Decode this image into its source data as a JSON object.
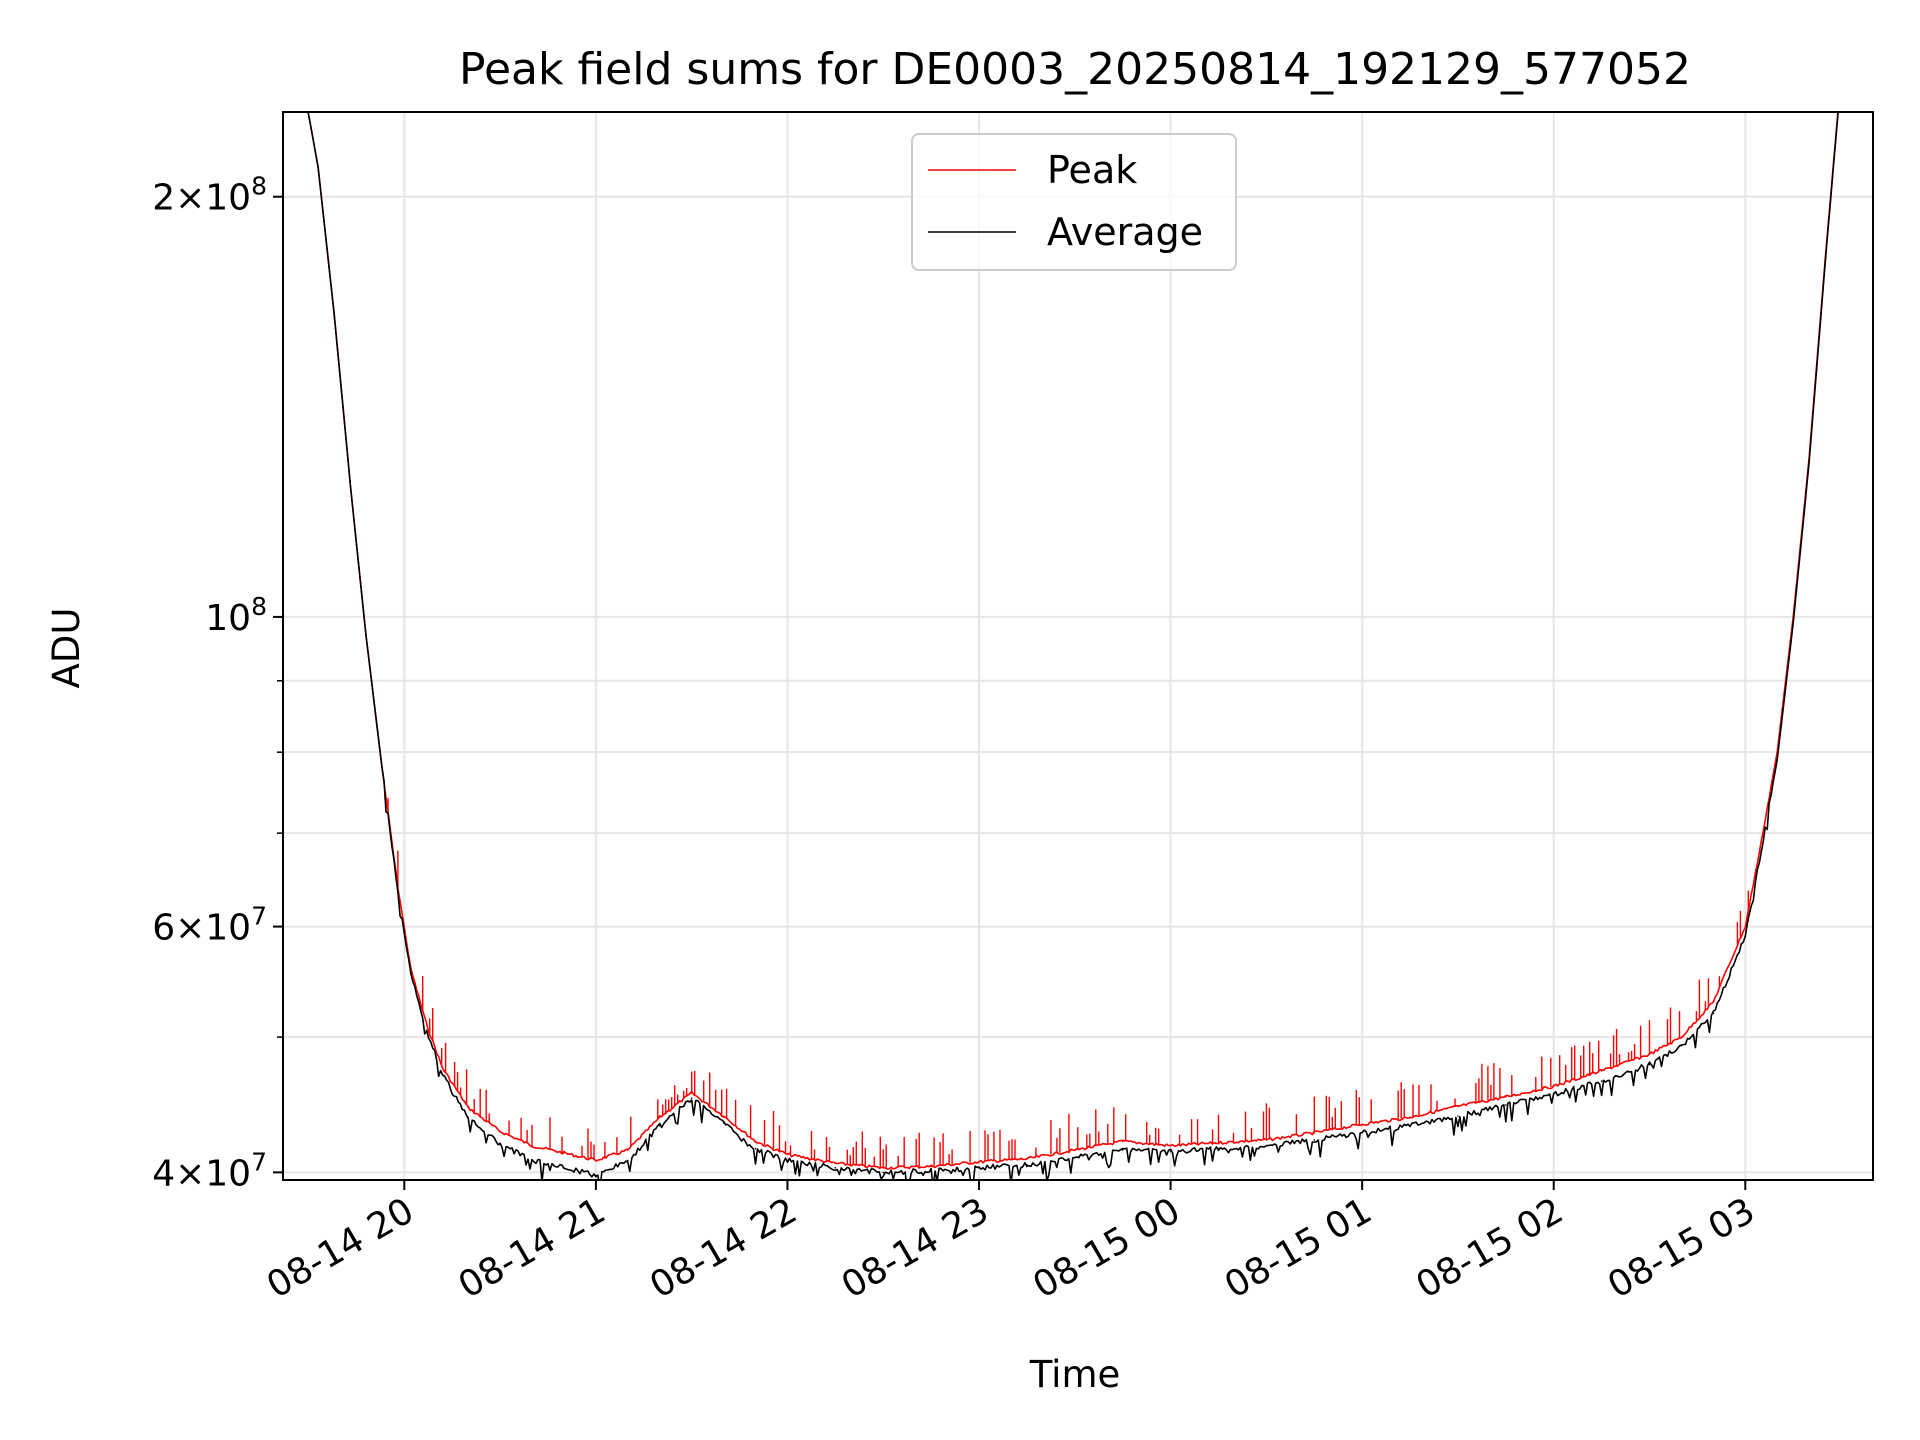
{
  "chart_data": {
    "type": "line",
    "title": "Peak field sums for DE0003_20250814_192129_577052",
    "xlabel": "Time",
    "ylabel": "ADU",
    "yscale": "log",
    "xlim": [
      "2025-08-14 19:22",
      "2025-08-15 03:40"
    ],
    "ylim": [
      39500000,
      230000000
    ],
    "grid": true,
    "legend_position": "top-center",
    "x_ticks": [
      "08-14 20",
      "08-14 21",
      "08-14 22",
      "08-14 23",
      "08-15 00",
      "08-15 01",
      "08-15 02",
      "08-15 03"
    ],
    "x_tick_times": [
      "2025-08-14 20:00",
      "2025-08-14 21:00",
      "2025-08-14 22:00",
      "2025-08-14 23:00",
      "2025-08-15 00:00",
      "2025-08-15 01:00",
      "2025-08-15 02:00",
      "2025-08-15 03:00"
    ],
    "y_ticks": [
      {
        "value": 40000000,
        "mantissa": "4",
        "exp": "7"
      },
      {
        "value": 60000000,
        "mantissa": "6",
        "exp": "7"
      },
      {
        "value": 100000000,
        "mantissa": "",
        "exp": "8"
      },
      {
        "value": 200000000,
        "mantissa": "2",
        "exp": "8"
      }
    ],
    "y_minor_ticks": [
      50000000,
      70000000,
      80000000,
      90000000
    ],
    "series": [
      {
        "name": "Peak",
        "color": "#ff0000",
        "spikes": true,
        "x": [
          "2025-08-14 19:27",
          "2025-08-14 19:33",
          "2025-08-14 19:38",
          "2025-08-14 19:43",
          "2025-08-14 19:48",
          "2025-08-14 19:53",
          "2025-08-14 19:58",
          "2025-08-14 20:02",
          "2025-08-14 20:07",
          "2025-08-14 20:12",
          "2025-08-14 20:20",
          "2025-08-14 20:30",
          "2025-08-14 20:40",
          "2025-08-14 20:50",
          "2025-08-14 21:00",
          "2025-08-14 21:10",
          "2025-08-14 21:20",
          "2025-08-14 21:30",
          "2025-08-14 21:40",
          "2025-08-14 21:50",
          "2025-08-14 22:00",
          "2025-08-14 22:15",
          "2025-08-14 22:30",
          "2025-08-14 22:45",
          "2025-08-14 23:00",
          "2025-08-14 23:15",
          "2025-08-14 23:30",
          "2025-08-14 23:45",
          "2025-08-15 00:00",
          "2025-08-15 00:15",
          "2025-08-15 00:30",
          "2025-08-15 00:45",
          "2025-08-15 01:00",
          "2025-08-15 01:15",
          "2025-08-15 01:30",
          "2025-08-15 01:45",
          "2025-08-15 02:00",
          "2025-08-15 02:15",
          "2025-08-15 02:30",
          "2025-08-15 02:40",
          "2025-08-15 02:50",
          "2025-08-15 03:00",
          "2025-08-15 03:05",
          "2025-08-15 03:10",
          "2025-08-15 03:15",
          "2025-08-15 03:20",
          "2025-08-15 03:25",
          "2025-08-15 03:29",
          "2025-08-15 03:32"
        ],
        "values": [
          250000000,
          210000000,
          165000000,
          125000000,
          97000000,
          78000000,
          64000000,
          56000000,
          51000000,
          47500000,
          44500000,
          42800000,
          41800000,
          41300000,
          40800000,
          41500000,
          43800000,
          45600000,
          43900000,
          42100000,
          41200000,
          40600000,
          40300000,
          40400000,
          40700000,
          40900000,
          41500000,
          42100000,
          41800000,
          42000000,
          42200000,
          42700000,
          43300000,
          43800000,
          44600000,
          45300000,
          46100000,
          47300000,
          48600000,
          50000000,
          53000000,
          60000000,
          69000000,
          80000000,
          100000000,
          130000000,
          180000000,
          230000000,
          260000000
        ]
      },
      {
        "name": "Average",
        "color": "#000000",
        "spikes": false,
        "x": [
          "2025-08-14 19:27",
          "2025-08-14 19:33",
          "2025-08-14 19:38",
          "2025-08-14 19:43",
          "2025-08-14 19:48",
          "2025-08-14 19:53",
          "2025-08-14 19:58",
          "2025-08-14 20:02",
          "2025-08-14 20:07",
          "2025-08-14 20:12",
          "2025-08-14 20:20",
          "2025-08-14 20:30",
          "2025-08-14 20:40",
          "2025-08-14 20:50",
          "2025-08-14 21:00",
          "2025-08-14 21:10",
          "2025-08-14 21:20",
          "2025-08-14 21:30",
          "2025-08-14 21:40",
          "2025-08-14 21:50",
          "2025-08-14 22:00",
          "2025-08-14 22:15",
          "2025-08-14 22:30",
          "2025-08-14 22:45",
          "2025-08-14 23:00",
          "2025-08-14 23:15",
          "2025-08-14 23:30",
          "2025-08-14 23:45",
          "2025-08-15 00:00",
          "2025-08-15 00:15",
          "2025-08-15 00:30",
          "2025-08-15 00:45",
          "2025-08-15 01:00",
          "2025-08-15 01:15",
          "2025-08-15 01:30",
          "2025-08-15 01:45",
          "2025-08-15 02:00",
          "2025-08-15 02:15",
          "2025-08-15 02:30",
          "2025-08-15 02:40",
          "2025-08-15 02:50",
          "2025-08-15 03:00",
          "2025-08-15 03:05",
          "2025-08-15 03:10",
          "2025-08-15 03:15",
          "2025-08-15 03:20",
          "2025-08-15 03:25",
          "2025-08-15 03:29",
          "2025-08-15 03:32"
        ],
        "values": [
          250000000,
          210000000,
          165000000,
          125000000,
          97000000,
          78000000,
          63500000,
          55500000,
          50500000,
          47000000,
          43800000,
          41900000,
          40800000,
          40300000,
          39800000,
          40800000,
          43200000,
          45200000,
          43400000,
          41600000,
          40800000,
          40300000,
          40000000,
          40100000,
          40300000,
          40500000,
          41000000,
          41500000,
          41400000,
          41600000,
          41800000,
          42200000,
          42700000,
          43200000,
          43900000,
          44700000,
          45500000,
          46500000,
          47800000,
          49300000,
          52000000,
          59000000,
          68000000,
          79000000,
          99000000,
          129000000,
          179000000,
          229000000,
          260000000
        ]
      }
    ]
  }
}
